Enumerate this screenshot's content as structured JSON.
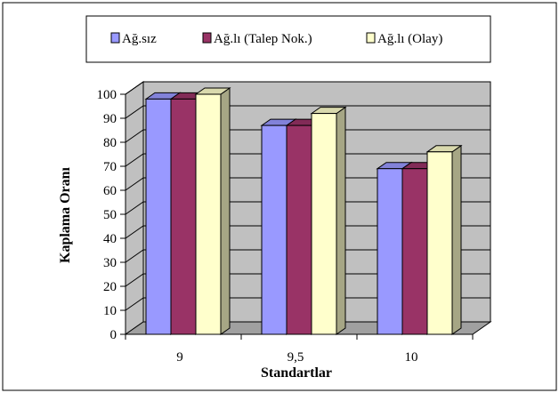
{
  "chart_data": {
    "type": "bar",
    "title": "",
    "xlabel": "Standartlar",
    "ylabel": "Kaplama Oranı",
    "categories": [
      "9",
      "9,5",
      "10"
    ],
    "ylim": [
      0,
      100
    ],
    "yticks": [
      0,
      10,
      20,
      30,
      40,
      50,
      60,
      70,
      80,
      90,
      100
    ],
    "grid": true,
    "legend_position": "top",
    "three_d": true,
    "series": [
      {
        "name": "Ağ.sız",
        "values": [
          98,
          87,
          69
        ],
        "color": "#9999FF"
      },
      {
        "name": "Ağ.lı (Talep Nok.)",
        "values": [
          98,
          87,
          69
        ],
        "color": "#993366"
      },
      {
        "name": "Ağ.lı (Olay)",
        "values": [
          100,
          92,
          76
        ],
        "color": "#FFFFCC"
      }
    ]
  }
}
